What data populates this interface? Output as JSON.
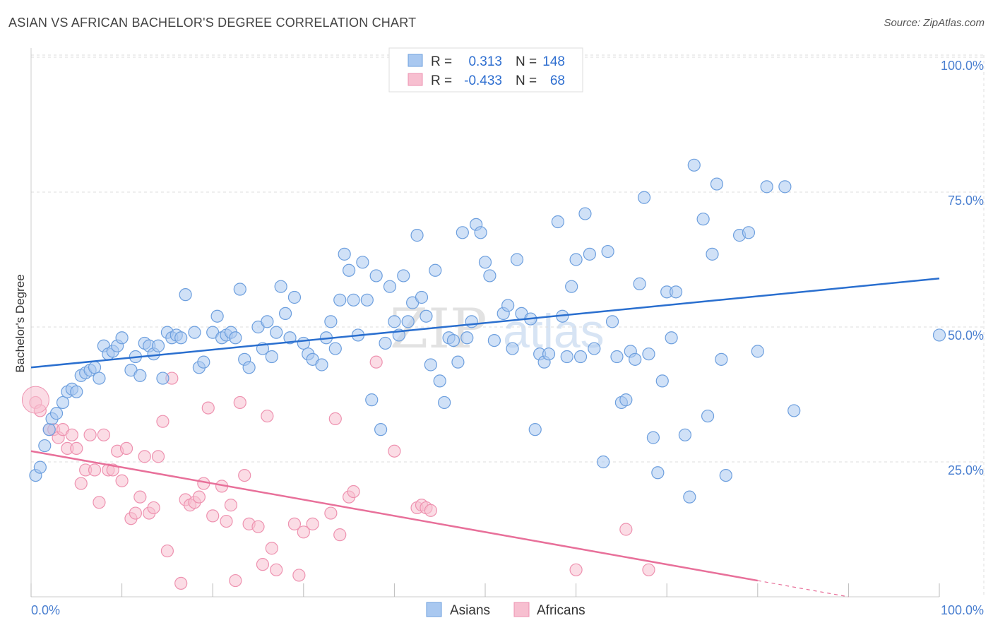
{
  "header": {
    "title": "ASIAN VS AFRICAN BACHELOR'S DEGREE CORRELATION CHART",
    "source": "Source: ZipAtlas.com"
  },
  "watermark": {
    "zip": "ZIP",
    "atlas": "atlas"
  },
  "colors": {
    "asians_fill": "#a9c8f0",
    "asians_stroke": "#6d9fde",
    "asians_line": "#2a6fcf",
    "africans_fill": "#f7bfd0",
    "africans_stroke": "#ee92b0",
    "africans_line": "#e8709a",
    "tick_text": "#4a7fd0",
    "grid": "#dddddd"
  },
  "chart_data": {
    "type": "scatter",
    "title": "ASIAN VS AFRICAN BACHELOR'S DEGREE CORRELATION CHART",
    "xlabel": "",
    "ylabel": "Bachelor's Degree",
    "xlim": [
      0,
      100
    ],
    "ylim": [
      0,
      100
    ],
    "x_tick_labels": [
      "0.0%",
      "100.0%"
    ],
    "y_ticks": [
      25,
      50,
      75,
      100
    ],
    "y_tick_labels": [
      "25.0%",
      "50.0%",
      "75.0%",
      "100.0%"
    ],
    "legend": [
      {
        "r_label": "R =",
        "r": "0.313",
        "n_label": "N =",
        "n": "148"
      },
      {
        "r_label": "R =",
        "r": "-0.433",
        "n_label": "N =",
        "n": "68"
      }
    ],
    "series": [
      {
        "name": "Asians",
        "trend": {
          "x": [
            0,
            100
          ],
          "y": [
            42.5,
            59
          ]
        },
        "points": [
          [
            0.5,
            22.5
          ],
          [
            1,
            24
          ],
          [
            1.5,
            28
          ],
          [
            2,
            31
          ],
          [
            2.3,
            33
          ],
          [
            2.8,
            34
          ],
          [
            3.5,
            36
          ],
          [
            4,
            38
          ],
          [
            4.5,
            38.5
          ],
          [
            5,
            38
          ],
          [
            5.5,
            41
          ],
          [
            6,
            41.5
          ],
          [
            6.5,
            42
          ],
          [
            7,
            42.5
          ],
          [
            7.5,
            40.5
          ],
          [
            8,
            46.5
          ],
          [
            8.5,
            45
          ],
          [
            9,
            45.5
          ],
          [
            9.5,
            46.5
          ],
          [
            10,
            48
          ],
          [
            11,
            42
          ],
          [
            11.5,
            44.5
          ],
          [
            12,
            41
          ],
          [
            12.5,
            47
          ],
          [
            13,
            46.5
          ],
          [
            13.5,
            45
          ],
          [
            14,
            46.5
          ],
          [
            14.5,
            40.5
          ],
          [
            15,
            49
          ],
          [
            15.5,
            48
          ],
          [
            16,
            48.5
          ],
          [
            16.5,
            48
          ],
          [
            17,
            56
          ],
          [
            18,
            49
          ],
          [
            18.5,
            42.5
          ],
          [
            19,
            43.5
          ],
          [
            20,
            49
          ],
          [
            20.5,
            52
          ],
          [
            21,
            48
          ],
          [
            21.5,
            48.5
          ],
          [
            22,
            49
          ],
          [
            22.5,
            48
          ],
          [
            23,
            57
          ],
          [
            23.5,
            44
          ],
          [
            24,
            42.5
          ],
          [
            25,
            50
          ],
          [
            25.5,
            46
          ],
          [
            26,
            51
          ],
          [
            26.5,
            44.5
          ],
          [
            27,
            49
          ],
          [
            27.5,
            57.5
          ],
          [
            28,
            52.5
          ],
          [
            28.5,
            48
          ],
          [
            29,
            55.5
          ],
          [
            30,
            47
          ],
          [
            30.5,
            45
          ],
          [
            31,
            44
          ],
          [
            32,
            43
          ],
          [
            32.5,
            48
          ],
          [
            33,
            51
          ],
          [
            33.5,
            46
          ],
          [
            34,
            55
          ],
          [
            34.5,
            63.5
          ],
          [
            35,
            60.5
          ],
          [
            35.5,
            55
          ],
          [
            36,
            48.5
          ],
          [
            36.5,
            62
          ],
          [
            37,
            55
          ],
          [
            37.5,
            36.5
          ],
          [
            38,
            59.5
          ],
          [
            38.5,
            31
          ],
          [
            39,
            47
          ],
          [
            39.5,
            57.5
          ],
          [
            40,
            51
          ],
          [
            40.5,
            48.5
          ],
          [
            41,
            59.5
          ],
          [
            41.5,
            51
          ],
          [
            42,
            54.5
          ],
          [
            42.5,
            67
          ],
          [
            43,
            55.5
          ],
          [
            43.5,
            52
          ],
          [
            44,
            43
          ],
          [
            44.5,
            60.5
          ],
          [
            45,
            40
          ],
          [
            45.5,
            36
          ],
          [
            46,
            48
          ],
          [
            46.5,
            47.5
          ],
          [
            47,
            43.5
          ],
          [
            47.5,
            67.5
          ],
          [
            48,
            48
          ],
          [
            48.5,
            51
          ],
          [
            49,
            69
          ],
          [
            49.5,
            67.5
          ],
          [
            50,
            62
          ],
          [
            50.5,
            59.5
          ],
          [
            51,
            47.5
          ],
          [
            52,
            52.5
          ],
          [
            52.5,
            54
          ],
          [
            53,
            46
          ],
          [
            53.5,
            62.5
          ],
          [
            54,
            52.5
          ],
          [
            55,
            51.5
          ],
          [
            55.5,
            31
          ],
          [
            56,
            45
          ],
          [
            56.5,
            43.5
          ],
          [
            57,
            45
          ],
          [
            58,
            69.5
          ],
          [
            58.5,
            52
          ],
          [
            59,
            44.5
          ],
          [
            59.5,
            57.5
          ],
          [
            60,
            62.5
          ],
          [
            60.5,
            44.5
          ],
          [
            61,
            71
          ],
          [
            61.5,
            63.5
          ],
          [
            62,
            46
          ],
          [
            63,
            25
          ],
          [
            63.5,
            64
          ],
          [
            64,
            51
          ],
          [
            64.5,
            44.5
          ],
          [
            65,
            36
          ],
          [
            65.5,
            36.5
          ],
          [
            66,
            45.5
          ],
          [
            66.5,
            44
          ],
          [
            67,
            58
          ],
          [
            67.5,
            74
          ],
          [
            68,
            45
          ],
          [
            68.5,
            29.5
          ],
          [
            69,
            23
          ],
          [
            69.5,
            40
          ],
          [
            70,
            56.5
          ],
          [
            70.5,
            48
          ],
          [
            71,
            56.5
          ],
          [
            72,
            30
          ],
          [
            72.5,
            18.5
          ],
          [
            73,
            80
          ],
          [
            74,
            70
          ],
          [
            74.5,
            33.5
          ],
          [
            75,
            63.5
          ],
          [
            75.5,
            76.5
          ],
          [
            76,
            44
          ],
          [
            76.5,
            22.5
          ],
          [
            78,
            67
          ],
          [
            79,
            67.5
          ],
          [
            80,
            45.5
          ],
          [
            81,
            76
          ],
          [
            83,
            76
          ],
          [
            84,
            34.5
          ],
          [
            100,
            48.5
          ]
        ]
      },
      {
        "name": "Africans",
        "trend": {
          "x": [
            0,
            80
          ],
          "y": [
            27,
            3
          ]
        },
        "points": [
          [
            0.5,
            36
          ],
          [
            1,
            34.5
          ],
          [
            2,
            31
          ],
          [
            2.5,
            31
          ],
          [
            3,
            29.5
          ],
          [
            3.5,
            31
          ],
          [
            4,
            27.5
          ],
          [
            4.5,
            30
          ],
          [
            5,
            27.5
          ],
          [
            5.5,
            21
          ],
          [
            6,
            23.5
          ],
          [
            6.5,
            30
          ],
          [
            7,
            23.5
          ],
          [
            7.5,
            17.5
          ],
          [
            8,
            30
          ],
          [
            8.5,
            23.5
          ],
          [
            9,
            23.5
          ],
          [
            9.5,
            27
          ],
          [
            10,
            21.5
          ],
          [
            10.5,
            27.5
          ],
          [
            11,
            14.5
          ],
          [
            11.5,
            15.5
          ],
          [
            12,
            18.5
          ],
          [
            12.5,
            26
          ],
          [
            13,
            15.5
          ],
          [
            13.5,
            16.5
          ],
          [
            14,
            26
          ],
          [
            14.5,
            32.5
          ],
          [
            15,
            8.5
          ],
          [
            15.5,
            40.5
          ],
          [
            16.5,
            2.5
          ],
          [
            17,
            18
          ],
          [
            17.5,
            17
          ],
          [
            18,
            17.5
          ],
          [
            18.5,
            18.5
          ],
          [
            19,
            21
          ],
          [
            19.5,
            35
          ],
          [
            20,
            15
          ],
          [
            21,
            20.5
          ],
          [
            21.5,
            14
          ],
          [
            22,
            17
          ],
          [
            22.5,
            3
          ],
          [
            23,
            36
          ],
          [
            23.5,
            22.5
          ],
          [
            24,
            13.5
          ],
          [
            25,
            13
          ],
          [
            25.5,
            6
          ],
          [
            26,
            33.5
          ],
          [
            26.5,
            9
          ],
          [
            27,
            5
          ],
          [
            29,
            13.5
          ],
          [
            29.5,
            4
          ],
          [
            30,
            12
          ],
          [
            31,
            13.5
          ],
          [
            33,
            15.5
          ],
          [
            33.5,
            33
          ],
          [
            34,
            11.5
          ],
          [
            35,
            18.5
          ],
          [
            35.5,
            19.5
          ],
          [
            38,
            43.5
          ],
          [
            40,
            27
          ],
          [
            42.5,
            16.5
          ],
          [
            43,
            17
          ],
          [
            43.5,
            16.5
          ],
          [
            44,
            16
          ],
          [
            60,
            5
          ],
          [
            65.5,
            12.5
          ],
          [
            68,
            5
          ]
        ]
      }
    ]
  },
  "bottom_legend": {
    "asians": "Asians",
    "africans": "Africans"
  }
}
